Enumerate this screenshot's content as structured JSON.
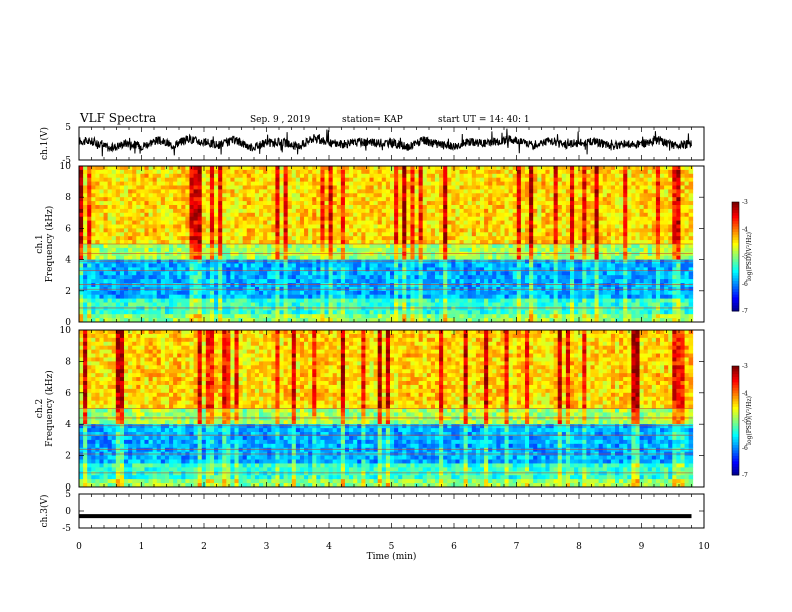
{
  "header": {
    "title": "VLF Spectra",
    "date": "Sep. 9  , 2019",
    "station": "station= KAP",
    "start": "start  UT =   14: 40: 1"
  },
  "chart_data": [
    {
      "id": "ch1-voltage",
      "type": "line",
      "ylabel": "ch.1(V)",
      "ylim": [
        -5,
        5
      ],
      "yticks": [
        "5",
        "-5"
      ],
      "xlim": [
        0,
        10
      ],
      "series": [
        {
          "color": "#000000",
          "x": [
            0,
            0.25,
            0.5,
            0.75,
            1,
            1.25,
            1.5,
            1.75,
            2,
            2.25,
            2.5,
            2.75,
            3,
            3.25,
            3.5,
            3.75,
            4,
            4.25,
            4.5,
            4.75,
            5,
            5.25,
            5.5,
            5.75,
            6,
            6.25,
            6.5,
            6.75,
            7,
            7.25,
            7.5,
            7.75,
            8,
            8.25,
            8.5,
            8.75,
            9,
            9.25,
            9.5,
            9.75
          ],
          "y": [
            0.8,
            0.5,
            -1.5,
            0.2,
            -0.8,
            1.0,
            -0.5,
            1.5,
            0.3,
            -0.5,
            1.2,
            -1.2,
            0.2,
            0.4,
            -1.0,
            1.6,
            0.2,
            -0.2,
            0.5,
            0.1,
            0.3,
            -1.2,
            0.9,
            -0.3,
            -0.8,
            0.6,
            0.1,
            0.9,
            1.2,
            -0.6,
            0.8,
            -0.4,
            0.2,
            0.7,
            -0.9,
            0.1,
            -0.2,
            1.1,
            -0.5,
            -0.2
          ]
        }
      ]
    },
    {
      "id": "ch1-spectrogram",
      "type": "heatmap",
      "ylabel": "ch.1\nFrequency  (kHz)",
      "xlim": [
        0,
        10
      ],
      "ylim": [
        0,
        10
      ],
      "yticks": [
        "0",
        "2",
        "4",
        "6",
        "8",
        "10"
      ],
      "colorbar": {
        "label": "log(PSD)(V²/Hz)",
        "range": [
          -7,
          -3
        ],
        "ticks": [
          "-3",
          "-4",
          "-5",
          "-6",
          "-7"
        ]
      }
    },
    {
      "id": "ch2-spectrogram",
      "type": "heatmap",
      "ylabel": "ch.2\nFrequency  (kHz)",
      "xlim": [
        0,
        10
      ],
      "ylim": [
        0,
        10
      ],
      "yticks": [
        "0",
        "2",
        "4",
        "6",
        "8",
        "10"
      ],
      "colorbar": {
        "label": "log(PSD)(V²/Hz)",
        "range": [
          -7,
          -3
        ],
        "ticks": [
          "-3",
          "-4",
          "-5",
          "-6",
          "-7"
        ]
      }
    },
    {
      "id": "ch3-voltage",
      "type": "line",
      "ylabel": "ch.3(V)",
      "ylim": [
        -5,
        5
      ],
      "yticks": [
        "5",
        "0",
        "-5"
      ],
      "xlim": [
        0,
        10
      ],
      "series": [
        {
          "color": "#000000",
          "x": [
            0,
            9.8
          ],
          "y": [
            -1.5,
            -1.5
          ]
        }
      ]
    }
  ],
  "xaxis": {
    "label": "Time  (min)",
    "ticks": [
      "0",
      "1",
      "2",
      "3",
      "4",
      "5",
      "6",
      "7",
      "8",
      "9",
      "10"
    ]
  }
}
